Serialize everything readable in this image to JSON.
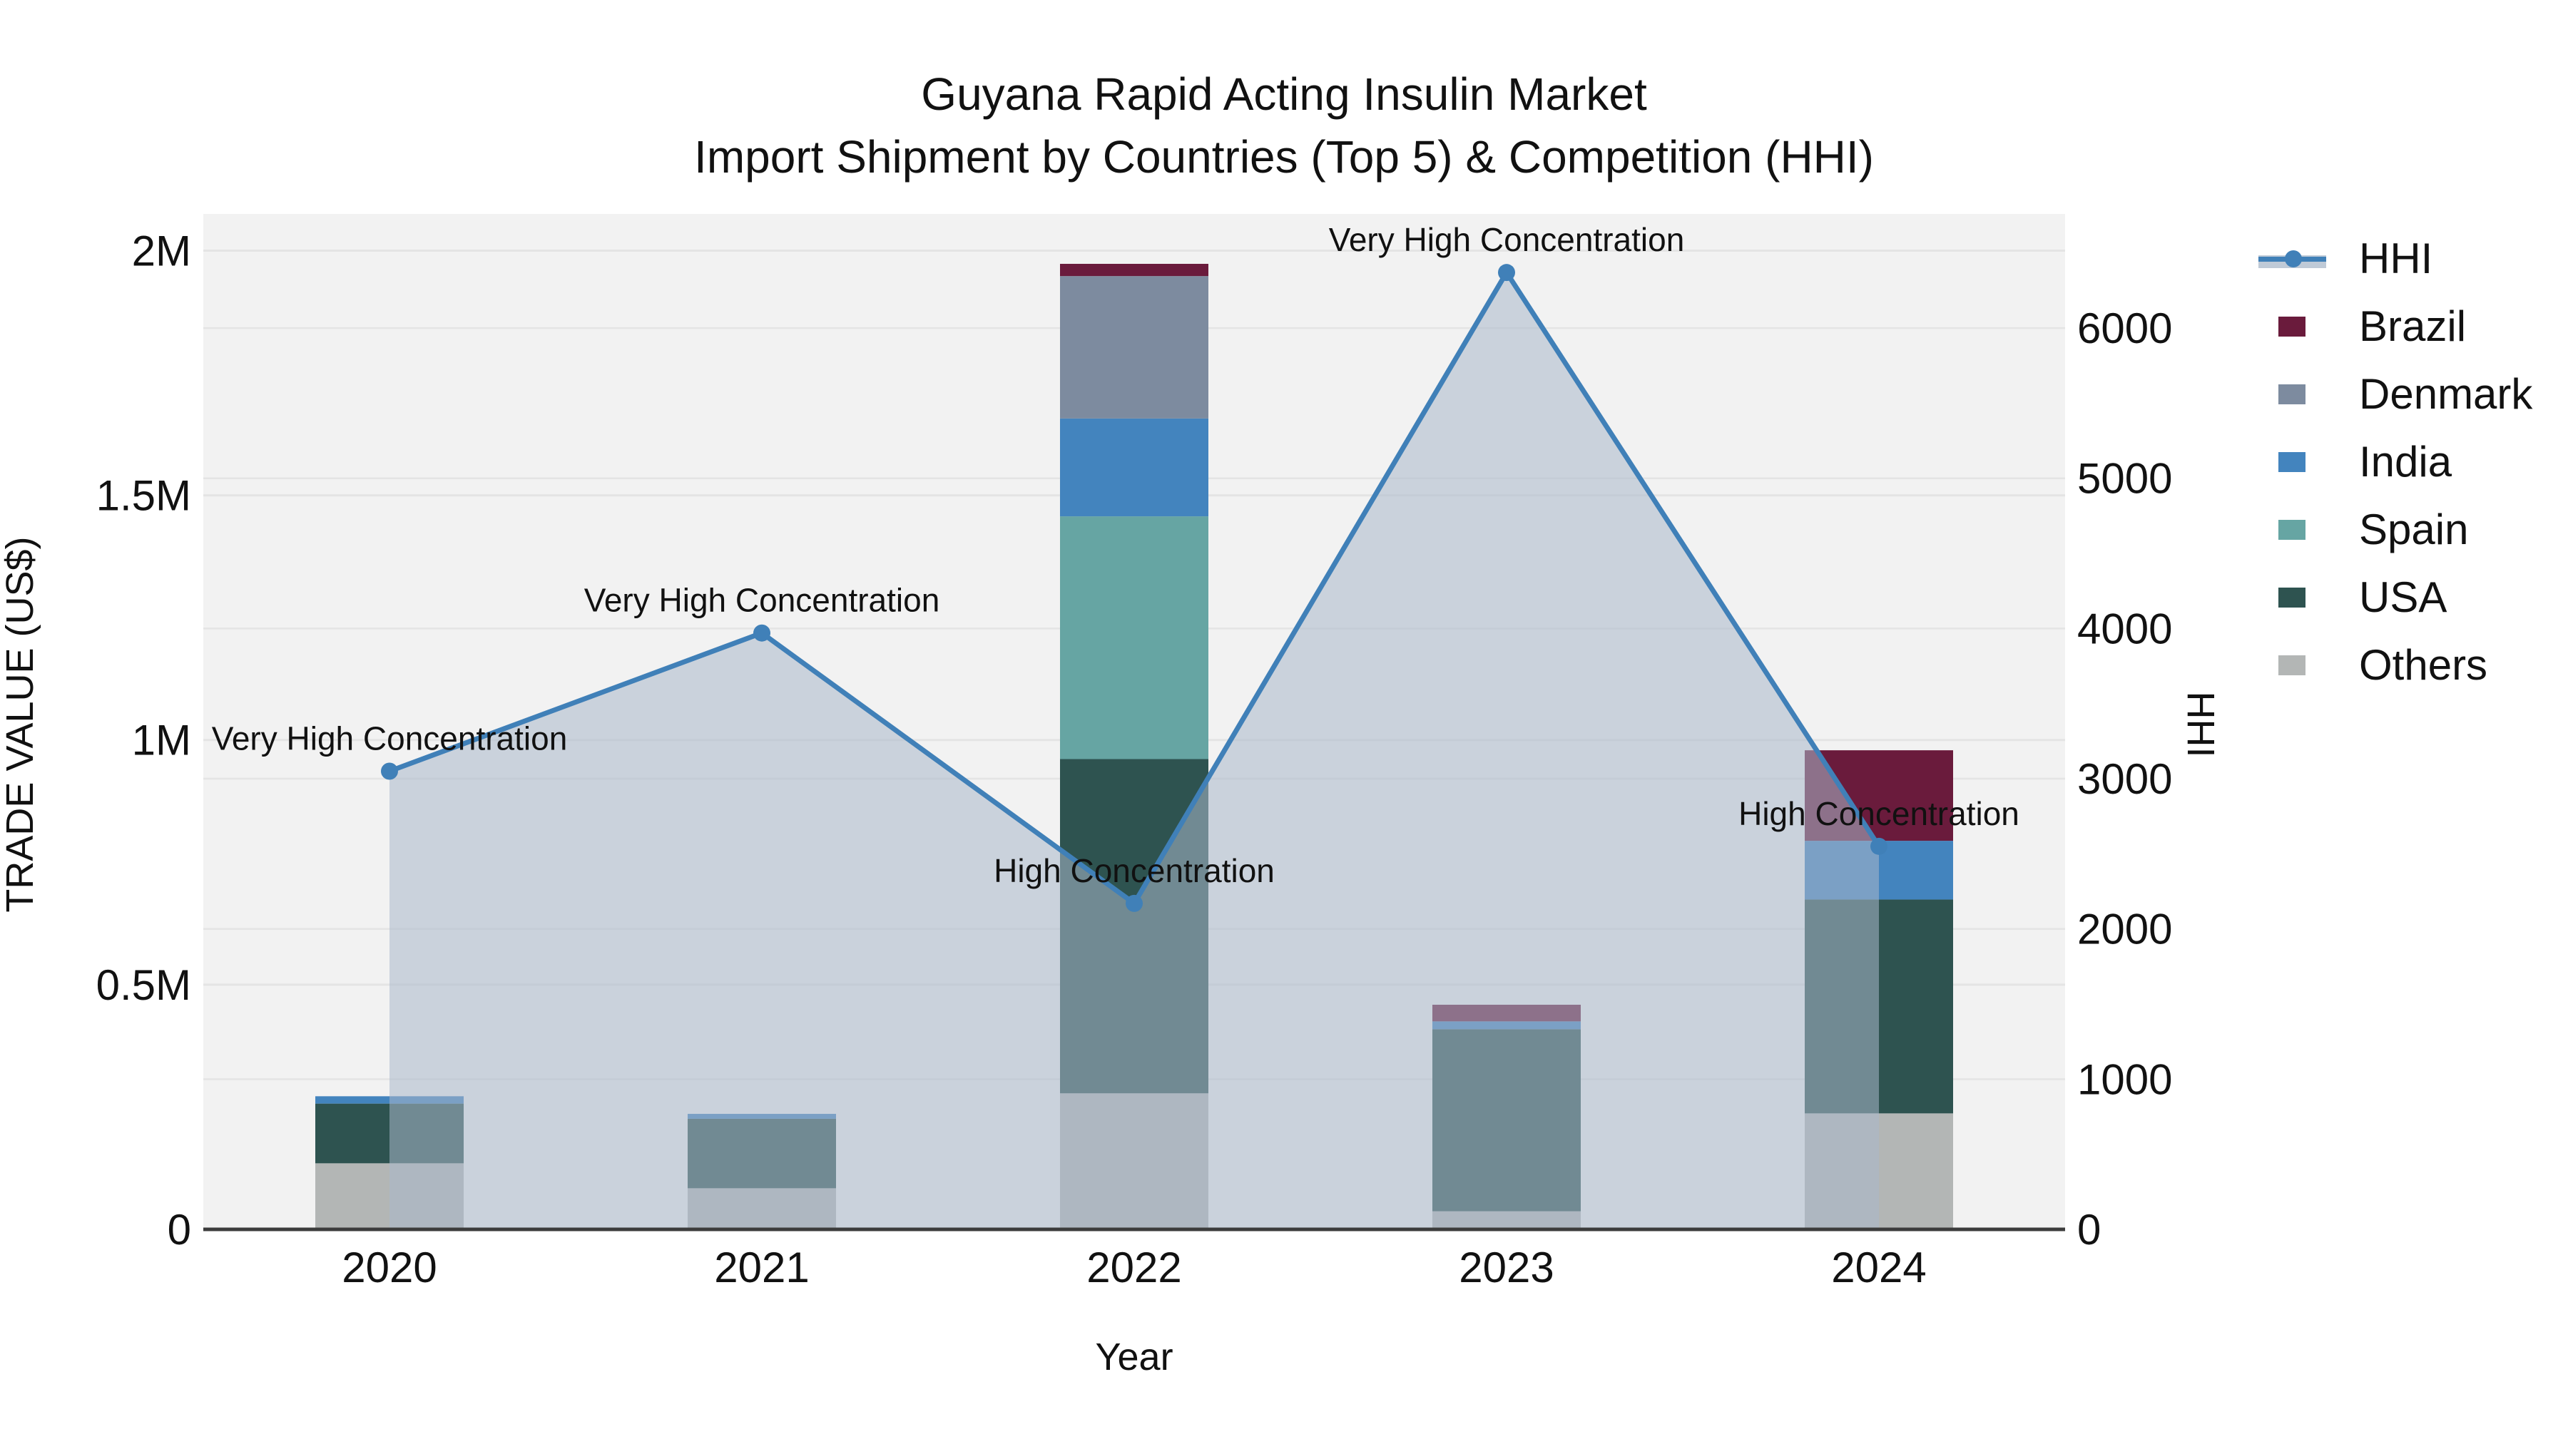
{
  "title": {
    "line1": "Guyana Rapid Acting Insulin Market",
    "line2": "Import Shipment by Countries (Top 5) & Competition (HHI)"
  },
  "axes": {
    "x": {
      "title": "Year"
    },
    "left": {
      "title": "TRADE VALUE (US$)",
      "ticks": [
        {
          "label": "0",
          "value": 0
        },
        {
          "label": "0.5M",
          "value": 500000
        },
        {
          "label": "1M",
          "value": 1000000
        },
        {
          "label": "1.5M",
          "value": 1500000
        },
        {
          "label": "2M",
          "value": 2000000
        }
      ]
    },
    "right": {
      "title": "HHI",
      "ticks": [
        {
          "label": "0",
          "value": 0
        },
        {
          "label": "1000",
          "value": 1000
        },
        {
          "label": "2000",
          "value": 2000
        },
        {
          "label": "3000",
          "value": 3000
        },
        {
          "label": "4000",
          "value": 4000
        },
        {
          "label": "5000",
          "value": 5000
        },
        {
          "label": "6000",
          "value": 6000
        }
      ]
    }
  },
  "legend": [
    {
      "name": "HHI",
      "type": "line",
      "color": "#4080B8",
      "band": "rgba(170,184,202,0.75)"
    },
    {
      "name": "Brazil",
      "type": "swatch",
      "color": "#6A1B3C"
    },
    {
      "name": "Denmark",
      "type": "swatch",
      "color": "#7D8B9F"
    },
    {
      "name": "India",
      "type": "swatch",
      "color": "#4384BE"
    },
    {
      "name": "Spain",
      "type": "swatch",
      "color": "#66A5A3"
    },
    {
      "name": "USA",
      "type": "swatch",
      "color": "#2E5350"
    },
    {
      "name": "Others",
      "type": "swatch",
      "color": "#B3B6B5"
    }
  ],
  "chart_data": {
    "type": "combo: stacked bar + line(area)",
    "title": "Guyana Rapid Acting Insulin Market — Import Shipment by Countries (Top 5) & Competition (HHI)",
    "categories": [
      "2020",
      "2021",
      "2022",
      "2023",
      "2024"
    ],
    "bar_value_unit": "US$ trade value",
    "series": [
      {
        "name": "Others",
        "color": "#B3B6B5",
        "values": [
          135000,
          84000,
          278000,
          37000,
          237000
        ]
      },
      {
        "name": "USA",
        "color": "#2E5350",
        "values": [
          122000,
          142000,
          683000,
          372000,
          437000
        ]
      },
      {
        "name": "Spain",
        "color": "#66A5A3",
        "values": [
          0,
          0,
          496000,
          0,
          0
        ]
      },
      {
        "name": "India",
        "color": "#4384BE",
        "values": [
          15000,
          10000,
          200000,
          16000,
          120000
        ]
      },
      {
        "name": "Denmark",
        "color": "#7D8B9F",
        "values": [
          0,
          0,
          291000,
          0,
          0
        ]
      },
      {
        "name": "Brazil",
        "color": "#6A1B3C",
        "values": [
          0,
          0,
          25000,
          34000,
          185000
        ]
      }
    ],
    "line": {
      "name": "HHI",
      "color": "#4080B8",
      "area_fill": "rgba(170,184,202,0.55)",
      "values": [
        3050,
        3970,
        2170,
        6370,
        2550
      ],
      "annotations": [
        "Very High Concentration",
        "Very High Concentration",
        "High Concentration",
        "Very High Concentration",
        "High Concentration"
      ]
    },
    "left_axis_range": [
      0,
      2075000
    ],
    "right_axis_range": [
      0,
      6760
    ],
    "grid": true,
    "legend_position": "right",
    "plot_background": "#F2F2F2",
    "grid_color": "#E4E4E4",
    "axis_line_color": "#3C3C3C",
    "text_color": "#111111"
  }
}
